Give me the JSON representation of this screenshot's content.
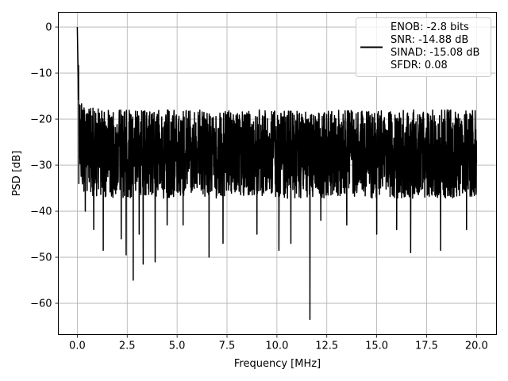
{
  "chart_data": {
    "type": "line",
    "title": "",
    "xlabel": "Frequency [MHz]",
    "ylabel": "PSD [dB]",
    "xlim": [
      -0.95,
      21.0
    ],
    "ylim": [
      -66.8,
      3.2
    ],
    "xticks": [
      0.0,
      2.5,
      5.0,
      7.5,
      10.0,
      12.5,
      15.0,
      17.5,
      20.0
    ],
    "xtick_labels": [
      "0.0",
      "2.5",
      "5.0",
      "7.5",
      "10.0",
      "12.5",
      "15.0",
      "17.5",
      "20.0"
    ],
    "yticks": [
      0,
      -10,
      -20,
      -30,
      -40,
      -50,
      -60
    ],
    "ytick_labels": [
      "0",
      "−10",
      "−20",
      "−30",
      "−40",
      "−50",
      "−60"
    ],
    "grid": true,
    "legend": {
      "placement": "top-right",
      "entries": [
        "ENOB: -2.8 bits",
        "SNR: -14.88 dB",
        "SINAD: -15.08 dB",
        "SFDR: 0.08"
      ]
    },
    "series": [
      {
        "color": "#000000",
        "noisy": true,
        "x": [
          0.0,
          0.02,
          0.05,
          0.1,
          0.15,
          0.2,
          0.3,
          0.4,
          0.5,
          0.6,
          0.8,
          1.0,
          1.3,
          1.6,
          2.0,
          2.5,
          3.0,
          3.5,
          4.0,
          5.0,
          6.0,
          7.0,
          8.0,
          9.0,
          10.0,
          11.0,
          12.0,
          13.0,
          14.0,
          15.0,
          16.0,
          17.0,
          18.0,
          19.0,
          20.0
        ],
        "y": [
          0.0,
          -5.0,
          -12.0,
          -20.0,
          -24.0,
          -25.0,
          -26.0,
          -26.0,
          -26.5,
          -26.5,
          -26.5,
          -26.5,
          -27.0,
          -27.0,
          -27.0,
          -27.0,
          -27.0,
          -27.0,
          -27.0,
          -27.0,
          -27.0,
          -27.0,
          -27.0,
          -27.0,
          -27.0,
          -27.0,
          -27.0,
          -27.0,
          -27.0,
          -27.0,
          -27.0,
          -27.0,
          -27.0,
          -27.0,
          -27.0
        ],
        "spread_high": 10,
        "spread_low": 12,
        "dips": [
          [
            0.08,
            -34
          ],
          [
            0.25,
            -33
          ],
          [
            0.4,
            -40
          ],
          [
            0.82,
            -44
          ],
          [
            1.3,
            -48.5
          ],
          [
            2.2,
            -46
          ],
          [
            2.45,
            -49.5
          ],
          [
            2.8,
            -55
          ],
          [
            3.1,
            -45
          ],
          [
            3.3,
            -51.5
          ],
          [
            3.9,
            -51
          ],
          [
            4.5,
            -43
          ],
          [
            5.3,
            -43
          ],
          [
            6.6,
            -50
          ],
          [
            7.3,
            -47
          ],
          [
            9.0,
            -45
          ],
          [
            10.1,
            -48.5
          ],
          [
            10.7,
            -47
          ],
          [
            11.65,
            -63.5
          ],
          [
            12.2,
            -42
          ],
          [
            13.5,
            -43
          ],
          [
            15.0,
            -45
          ],
          [
            16.0,
            -44
          ],
          [
            16.7,
            -49
          ],
          [
            18.2,
            -48.5
          ],
          [
            19.5,
            -44
          ]
        ]
      }
    ]
  }
}
